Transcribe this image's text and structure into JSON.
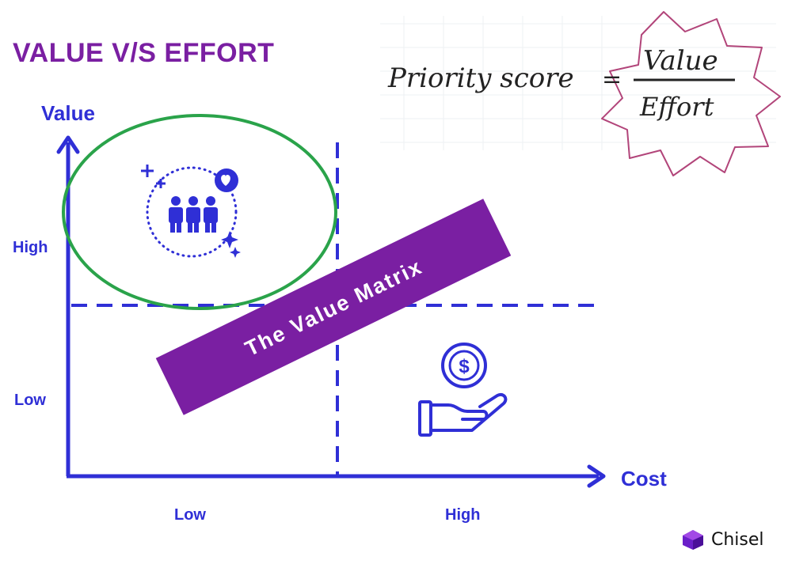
{
  "title": "VALUE V/S EFFORT",
  "axes": {
    "y_title": "Value",
    "x_title": "Cost",
    "y_ticks": {
      "high": "High",
      "low": "Low"
    },
    "x_ticks": {
      "low": "Low",
      "high": "High"
    }
  },
  "banner": {
    "text": "The Value Matrix"
  },
  "formula": {
    "lhs": "Priority score",
    "equals": "=",
    "numerator": "Value",
    "denominator": "Effort"
  },
  "brand": {
    "name": "Chisel"
  },
  "colors": {
    "title": "#7a1fa2",
    "axis": "#2f2fd6",
    "banner": "#7a1fa2",
    "highlight_ellipse": "#2aa34a",
    "burst_outline": "#b2457a"
  },
  "icons": {
    "top_left_quadrant": "people-heart-icon",
    "bottom_right_quadrant": "hand-coin-icon",
    "brand_logo": "chisel-logo-icon"
  }
}
